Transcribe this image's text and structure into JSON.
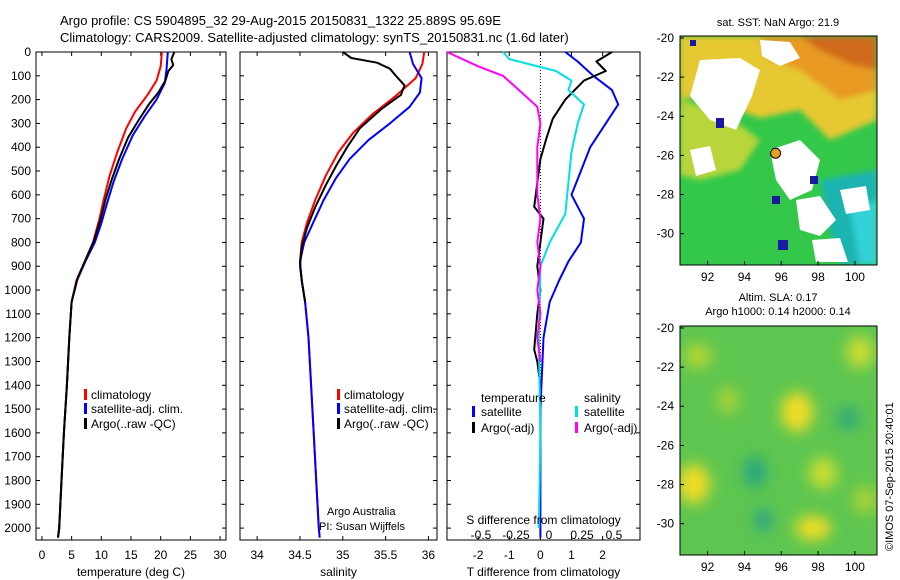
{
  "header": {
    "line1": "Argo profile: CS 5904895_32 29-Aug-2015 20150831_1322 25.889S 95.69E",
    "line2": "Climatology: CARS2009. Satellite-adjusted climatology: synTS_20150831.nc (1.6d later)"
  },
  "footer": {
    "watermark": "©IMOS 07-Sep-2015 20:40:01",
    "argo_australia": "Argo Australia",
    "pi": "PI: Susan Wijffels"
  },
  "colors": {
    "climatology": "#ff0000",
    "satellite": "#0000ff",
    "argo": "#000000",
    "sal_satellite": "#00e0e0",
    "sal_argo": "#ff00ff"
  },
  "chart_data": [
    {
      "type": "line",
      "id": "temperature",
      "xlabel": "temperature (deg C)",
      "xlim": [
        -1,
        31
      ],
      "ylim": [
        2050,
        0
      ],
      "xticks": [
        0,
        5,
        10,
        15,
        20,
        25,
        30
      ],
      "yticks": [
        0,
        100,
        200,
        300,
        400,
        500,
        600,
        700,
        800,
        900,
        1000,
        1100,
        1200,
        1300,
        1400,
        1500,
        1600,
        1700,
        1800,
        1900,
        2000
      ],
      "legend": [
        "climatology",
        "satellite-adj. clim.",
        "Argo(..raw -QC)"
      ],
      "series": [
        {
          "name": "climatology",
          "color": "#ff0000",
          "points": [
            [
              20.2,
              0
            ],
            [
              20.0,
              60
            ],
            [
              19.3,
              120
            ],
            [
              17.8,
              180
            ],
            [
              15.7,
              250
            ],
            [
              14.2,
              320
            ],
            [
              12.7,
              420
            ],
            [
              11.4,
              520
            ],
            [
              10.4,
              620
            ],
            [
              9.7,
              700
            ],
            [
              8.6,
              800
            ],
            [
              7.2,
              880
            ],
            [
              5.8,
              960
            ],
            [
              5.0,
              1050
            ],
            [
              4.6,
              1200
            ],
            [
              4.2,
              1400
            ],
            [
              3.7,
              1600
            ],
            [
              3.3,
              1800
            ],
            [
              2.9,
              2000
            ],
            [
              2.7,
              2040
            ]
          ]
        },
        {
          "name": "satellite-adj. clim.",
          "color": "#0000ff",
          "points": [
            [
              21.2,
              0
            ],
            [
              21.0,
              70
            ],
            [
              20.7,
              130
            ],
            [
              19.3,
              200
            ],
            [
              17.3,
              270
            ],
            [
              15.3,
              350
            ],
            [
              13.5,
              450
            ],
            [
              12.0,
              550
            ],
            [
              10.9,
              640
            ],
            [
              10.0,
              720
            ],
            [
              8.9,
              800
            ],
            [
              7.3,
              880
            ],
            [
              5.9,
              960
            ],
            [
              5.0,
              1050
            ],
            [
              4.6,
              1200
            ],
            [
              4.2,
              1400
            ],
            [
              3.7,
              1600
            ],
            [
              3.3,
              1800
            ],
            [
              2.9,
              2000
            ],
            [
              2.7,
              2040
            ]
          ]
        },
        {
          "name": "Argo(..raw -QC)",
          "color": "#000000",
          "points": [
            [
              22.3,
              0
            ],
            [
              21.8,
              30
            ],
            [
              22.1,
              55
            ],
            [
              21.3,
              80
            ],
            [
              20.8,
              120
            ],
            [
              19.6,
              170
            ],
            [
              18.0,
              220
            ],
            [
              16.2,
              290
            ],
            [
              14.5,
              360
            ],
            [
              13.0,
              450
            ],
            [
              11.7,
              540
            ],
            [
              10.7,
              620
            ],
            [
              9.9,
              700
            ],
            [
              8.8,
              790
            ],
            [
              7.4,
              870
            ],
            [
              6.0,
              950
            ],
            [
              5.0,
              1050
            ],
            [
              4.6,
              1200
            ],
            [
              4.2,
              1400
            ],
            [
              3.7,
              1600
            ],
            [
              3.3,
              1800
            ],
            [
              2.9,
              2000
            ],
            [
              2.7,
              2040
            ]
          ]
        }
      ]
    },
    {
      "type": "line",
      "id": "salinity",
      "xlabel": "salinity",
      "xlim": [
        33.8,
        36.1
      ],
      "ylim": [
        2050,
        0
      ],
      "xticks": [
        34,
        34.5,
        35,
        35.5,
        36
      ],
      "legend": [
        "climatology",
        "satellite-adj. clim.",
        "Argo(..raw -QC)"
      ],
      "series": [
        {
          "name": "climatology",
          "color": "#ff0000",
          "points": [
            [
              35.95,
              0
            ],
            [
              35.93,
              50
            ],
            [
              35.85,
              110
            ],
            [
              35.6,
              190
            ],
            [
              35.35,
              260
            ],
            [
              35.12,
              340
            ],
            [
              34.95,
              420
            ],
            [
              34.8,
              520
            ],
            [
              34.68,
              620
            ],
            [
              34.58,
              720
            ],
            [
              34.52,
              800
            ],
            [
              34.5,
              880
            ],
            [
              34.52,
              960
            ],
            [
              34.56,
              1050
            ],
            [
              34.6,
              1200
            ],
            [
              34.63,
              1400
            ],
            [
              34.66,
              1600
            ],
            [
              34.69,
              1800
            ],
            [
              34.72,
              2000
            ],
            [
              34.73,
              2040
            ]
          ]
        },
        {
          "name": "satellite-adj. clim.",
          "color": "#0000ff",
          "points": [
            [
              35.78,
              0
            ],
            [
              35.82,
              50
            ],
            [
              35.92,
              110
            ],
            [
              35.9,
              170
            ],
            [
              35.78,
              230
            ],
            [
              35.55,
              300
            ],
            [
              35.3,
              370
            ],
            [
              35.08,
              450
            ],
            [
              34.92,
              530
            ],
            [
              34.78,
              620
            ],
            [
              34.65,
              720
            ],
            [
              34.55,
              800
            ],
            [
              34.5,
              880
            ],
            [
              34.52,
              960
            ],
            [
              34.56,
              1050
            ],
            [
              34.6,
              1200
            ],
            [
              34.63,
              1400
            ],
            [
              34.66,
              1600
            ],
            [
              34.69,
              1800
            ],
            [
              34.72,
              2000
            ],
            [
              34.73,
              2040
            ]
          ]
        },
        {
          "name": "Argo(..raw -QC)",
          "color": "#000000",
          "points": [
            [
              35.0,
              0
            ],
            [
              35.1,
              25
            ],
            [
              35.4,
              45
            ],
            [
              35.55,
              70
            ],
            [
              35.62,
              100
            ],
            [
              35.72,
              140
            ],
            [
              35.68,
              180
            ],
            [
              35.45,
              240
            ],
            [
              35.2,
              320
            ],
            [
              35.05,
              400
            ],
            [
              34.92,
              480
            ],
            [
              34.8,
              560
            ],
            [
              34.68,
              650
            ],
            [
              34.58,
              740
            ],
            [
              34.52,
              820
            ],
            [
              34.5,
              900
            ],
            [
              34.53,
              980
            ],
            [
              34.56,
              1050
            ]
          ]
        }
      ]
    },
    {
      "type": "line",
      "id": "difference",
      "xlabel": "T difference from climatology",
      "xlabel2": "S difference from climatology",
      "xlim": [
        -3,
        3.2
      ],
      "ylim": [
        2050,
        0
      ],
      "xticks": [
        -2,
        -1,
        0,
        1,
        2
      ],
      "xticks_top": [
        "-0.5",
        "-0.25",
        "0",
        "0.25",
        "0.5"
      ],
      "legend_heads": [
        "temperature",
        "salinity"
      ],
      "legend": [
        "satellite",
        "Argo(-adj)",
        "satellite",
        "Argo(-adj)"
      ],
      "series": [
        {
          "name": "satellite",
          "color": "#0000ff",
          "points": [
            [
              0.8,
              0
            ],
            [
              1.2,
              40
            ],
            [
              1.7,
              100
            ],
            [
              2.3,
              160
            ],
            [
              2.5,
              220
            ],
            [
              2.1,
              300
            ],
            [
              1.6,
              400
            ],
            [
              1.3,
              500
            ],
            [
              1.0,
              600
            ],
            [
              1.4,
              700
            ],
            [
              1.3,
              800
            ],
            [
              0.9,
              880
            ],
            [
              0.6,
              960
            ],
            [
              0.3,
              1050
            ],
            [
              0.1,
              1200
            ],
            [
              0,
              1500
            ],
            [
              0,
              2040
            ]
          ]
        },
        {
          "name": "Argo(-adj)",
          "color": "#000000",
          "points": [
            [
              2.3,
              0
            ],
            [
              1.8,
              40
            ],
            [
              2.1,
              80
            ],
            [
              1.4,
              120
            ],
            [
              0.8,
              200
            ],
            [
              0.4,
              280
            ],
            [
              0.2,
              360
            ],
            [
              0,
              450
            ],
            [
              -0.1,
              550
            ],
            [
              -0.2,
              650
            ],
            [
              0.1,
              700
            ],
            [
              0,
              800
            ],
            [
              -0.1,
              900
            ],
            [
              0,
              1000
            ],
            [
              -0.1,
              1100
            ],
            [
              -0.2,
              1250
            ],
            [
              -0.1,
              1300
            ],
            [
              0,
              1400
            ]
          ]
        },
        {
          "name": "satellite",
          "color": "#00e0e0",
          "points": [
            [
              -1.2,
              0
            ],
            [
              -1.0,
              30
            ],
            [
              0.5,
              80
            ],
            [
              1.0,
              120
            ],
            [
              0.9,
              160
            ],
            [
              1.4,
              220
            ],
            [
              1.2,
              300
            ],
            [
              1.0,
              420
            ],
            [
              0.9,
              550
            ],
            [
              0.8,
              680
            ],
            [
              0.3,
              800
            ],
            [
              0,
              900
            ],
            [
              -0.05,
              1200
            ],
            [
              0,
              1600
            ],
            [
              -0.05,
              2000
            ]
          ]
        },
        {
          "name": "Argo(-adj)",
          "color": "#ff00ff",
          "points": [
            [
              -3,
              0
            ],
            [
              -2.0,
              60
            ],
            [
              -1.2,
              100
            ],
            [
              -0.6,
              170
            ],
            [
              -0.1,
              230
            ],
            [
              0,
              300
            ],
            [
              -0.1,
              400
            ],
            [
              -0.1,
              600
            ],
            [
              0,
              700
            ],
            [
              -0.1,
              800
            ],
            [
              0,
              900
            ],
            [
              -0.1,
              1000
            ],
            [
              0,
              1100
            ],
            [
              -0.1,
              1200
            ],
            [
              0,
              1300
            ]
          ]
        }
      ]
    },
    {
      "type": "heatmap",
      "id": "sst_map",
      "title": "sat. SST: NaN Argo: 21.9",
      "xlim": [
        90.5,
        101.2
      ],
      "ylim": [
        -31.6,
        -19.9
      ],
      "xticks": [
        92,
        94,
        96,
        98,
        100
      ],
      "yticks": [
        -20,
        -22,
        -24,
        -26,
        -28,
        -30
      ],
      "marker": {
        "lon": 95.69,
        "lat": -25.889
      }
    },
    {
      "type": "heatmap",
      "id": "sla_map",
      "title1": "Altim. SLA: 0.17",
      "title2": "Argo h1000: 0.14 h2000: 0.14",
      "xlim": [
        90.5,
        101.2
      ],
      "ylim": [
        -31.6,
        -19.9
      ],
      "xticks": [
        92,
        94,
        96,
        98,
        100
      ],
      "yticks": [
        -20,
        -22,
        -24,
        -26,
        -28,
        -30
      ]
    }
  ]
}
